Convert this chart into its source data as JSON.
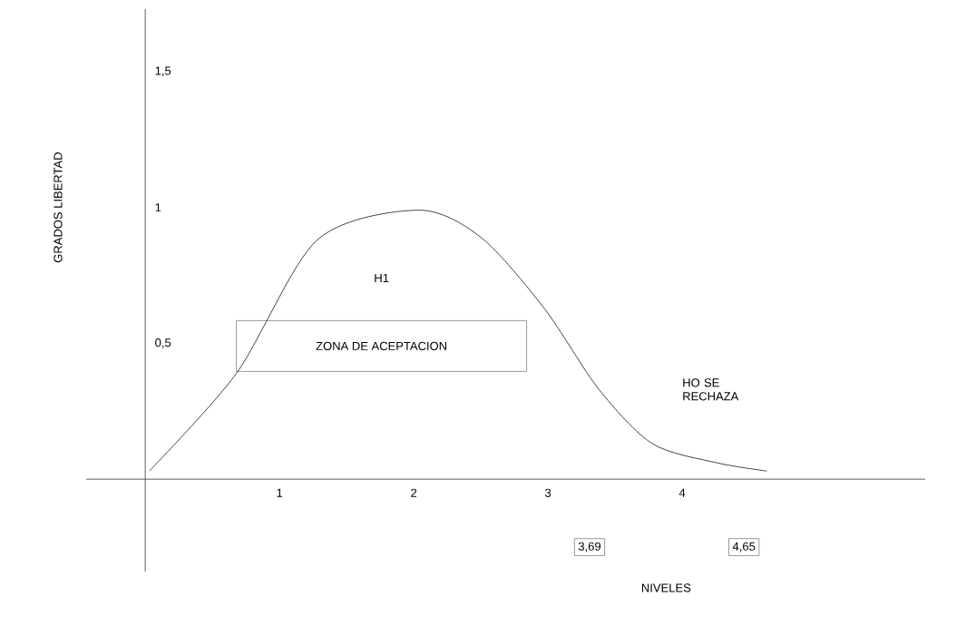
{
  "chart_data": {
    "type": "line",
    "xlabel": "NIVELES",
    "ylabel": "GRADOS LIBERTAD",
    "x": [
      0.03,
      0.68,
      1.28,
      2.03,
      2.5,
      2.97,
      3.38,
      3.78,
      4.26,
      4.63
    ],
    "values": [
      0.03,
      0.39,
      0.88,
      0.99,
      0.89,
      0.63,
      0.33,
      0.13,
      0.06,
      0.03
    ],
    "color": "#444444",
    "marker": "none",
    "line_style": "solid",
    "xlim": [
      -0.44,
      5.81
    ],
    "ylim": [
      -0.34,
      1.73
    ],
    "xticks": [
      1,
      2,
      3,
      4
    ],
    "yticks": [
      {
        "value": 0.5,
        "label": "0,5"
      },
      {
        "value": 1,
        "label": "1"
      },
      {
        "value": 1.5,
        "label": "1,5"
      }
    ],
    "annotations": [
      "H1",
      "ZONA DE ACEPTACION",
      "HO SE RECHAZA",
      "3,69",
      "4,65"
    ]
  }
}
